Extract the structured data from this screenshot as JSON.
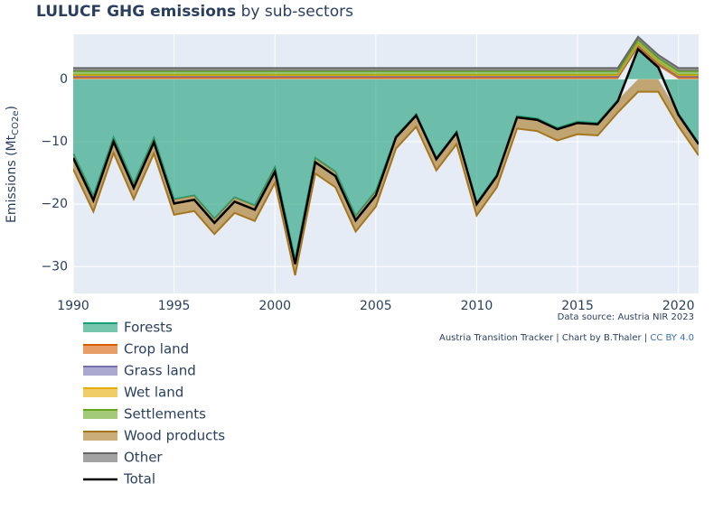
{
  "chart_data": {
    "type": "stacked_area",
    "title": {
      "bold": "LULUCF GHG emissions",
      "rest": " by sub-sectors"
    },
    "ylabel": {
      "main": "Emissions (Mt",
      "sub": "CO2e",
      "end": ")"
    },
    "x": [
      1990,
      1991,
      1992,
      1993,
      1994,
      1995,
      1996,
      1997,
      1998,
      1999,
      2000,
      2001,
      2002,
      2003,
      2004,
      2005,
      2006,
      2007,
      2008,
      2009,
      2010,
      2011,
      2012,
      2013,
      2014,
      2015,
      2016,
      2017,
      2018,
      2019,
      2020,
      2021
    ],
    "xlim": [
      1990,
      2021
    ],
    "xticks": [
      1990,
      1995,
      2000,
      2005,
      2010,
      2015,
      2020
    ],
    "ylim": [
      -34.3,
      7.2
    ],
    "yticks": [
      0,
      {
        "value": -10,
        "label": "−10"
      },
      {
        "value": -20,
        "label": "−20"
      },
      {
        "value": -30,
        "label": "−30"
      }
    ],
    "grid": true,
    "series": [
      {
        "name": "Forests",
        "color": "#1b9e77",
        "values": [
          -11.9,
          -18.7,
          -9.3,
          -16.7,
          -9.4,
          -19.2,
          -18.6,
          -22.3,
          -18.9,
          -20.2,
          -14.1,
          -28.9,
          -12.6,
          -14.8,
          -21.9,
          -17.9,
          -9.1,
          -5.6,
          -12.6,
          -8.4,
          -19.8,
          -15.3,
          -5.9,
          -6.3,
          -7.8,
          -6.8,
          -7.0,
          -3.3,
          5.0,
          2.1,
          -5.5,
          -10.2
        ]
      },
      {
        "name": "Crop land",
        "color": "#d95f02",
        "values": [
          0.3,
          0.3,
          0.3,
          0.3,
          0.3,
          0.3,
          0.3,
          0.3,
          0.3,
          0.3,
          0.3,
          0.3,
          0.3,
          0.3,
          0.3,
          0.3,
          0.3,
          0.3,
          0.3,
          0.3,
          0.3,
          0.3,
          0.3,
          0.3,
          0.3,
          0.3,
          0.3,
          0.3,
          0.3,
          0.3,
          0.3,
          0.3
        ]
      },
      {
        "name": "Grass land",
        "color": "#7570b3",
        "values": [
          0.2,
          0.2,
          0.2,
          0.2,
          0.2,
          0.2,
          0.2,
          0.2,
          0.2,
          0.2,
          0.2,
          0.2,
          0.2,
          0.2,
          0.2,
          0.2,
          0.2,
          0.2,
          0.2,
          0.2,
          0.2,
          0.2,
          0.2,
          0.2,
          0.2,
          0.2,
          0.2,
          0.2,
          0.2,
          0.2,
          0.2,
          0.2
        ]
      },
      {
        "name": "Wet land",
        "color": "#e6ab02",
        "values": [
          0.2,
          0.2,
          0.2,
          0.2,
          0.2,
          0.2,
          0.2,
          0.2,
          0.2,
          0.2,
          0.2,
          0.2,
          0.2,
          0.2,
          0.2,
          0.2,
          0.2,
          0.2,
          0.2,
          0.2,
          0.2,
          0.2,
          0.2,
          0.2,
          0.2,
          0.2,
          0.2,
          0.2,
          0.2,
          0.2,
          0.2,
          0.2
        ]
      },
      {
        "name": "Settlements",
        "color": "#66a61e",
        "values": [
          0.6,
          0.6,
          0.6,
          0.6,
          0.6,
          0.6,
          0.6,
          0.6,
          0.6,
          0.6,
          0.6,
          0.6,
          0.6,
          0.6,
          0.6,
          0.6,
          0.6,
          0.6,
          0.6,
          0.6,
          0.6,
          0.6,
          0.6,
          0.6,
          0.6,
          0.6,
          0.6,
          0.6,
          0.6,
          0.6,
          0.6,
          0.6
        ]
      },
      {
        "name": "Wood products",
        "color": "#a6761d",
        "values": [
          -2.5,
          -2.5,
          -2.5,
          -2.5,
          -2.5,
          -2.5,
          -2.5,
          -2.5,
          -2.5,
          -2.5,
          -2.5,
          -2.5,
          -2.5,
          -2.5,
          -2.5,
          -2.5,
          -2.0,
          -2.0,
          -2.0,
          -2.0,
          -2.0,
          -2.0,
          -2.0,
          -2.0,
          -2.0,
          -2.0,
          -2.0,
          -2.0,
          -2.0,
          -2.0,
          -2.0,
          -2.0
        ]
      },
      {
        "name": "Other",
        "color": "#666666",
        "values": [
          0.5,
          0.5,
          0.5,
          0.5,
          0.5,
          0.5,
          0.5,
          0.5,
          0.5,
          0.5,
          0.5,
          0.5,
          0.5,
          0.5,
          0.5,
          0.5,
          0.5,
          0.5,
          0.5,
          0.5,
          0.5,
          0.5,
          0.5,
          0.5,
          0.5,
          0.5,
          0.5,
          0.5,
          0.5,
          0.5,
          0.5,
          0.5
        ]
      },
      {
        "name": "Total",
        "color": "#000000",
        "line": true,
        "values": [
          -12.6,
          -19.4,
          -10.0,
          -17.4,
          -10.1,
          -19.9,
          -19.3,
          -23.0,
          -19.6,
          -20.9,
          -14.8,
          -29.6,
          -13.3,
          -15.5,
          -22.6,
          -18.6,
          -9.3,
          -5.8,
          -12.8,
          -8.6,
          -20.0,
          -15.5,
          -6.1,
          -6.5,
          -8.0,
          -7.0,
          -7.2,
          -3.5,
          4.8,
          1.9,
          -5.7,
          -10.4
        ]
      }
    ],
    "annotations": {
      "source": "Data source: Austria NIR 2023",
      "credit": "Austria Transition Tracker | Chart by B.Thaler | ",
      "license": "CC BY 4.0"
    }
  }
}
